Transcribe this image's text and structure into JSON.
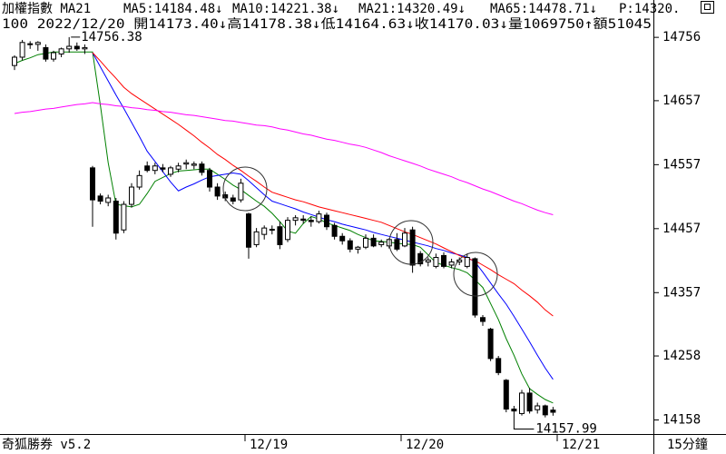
{
  "chart_data": {
    "type": "candlestick",
    "title": "加權指數 MA21",
    "info": "100 2022/12/20 開14173.40↓高14178.38↓低14164.63↓收14170.03↓量1069750↑額51045",
    "extra": {
      "text": "P:14320.",
      "color": "#008000"
    },
    "app_name": "奇狐勝券  v5.2",
    "period": "15分鐘",
    "up_color": "#ffffff",
    "down_color": "#000000",
    "categories": [
      null,
      null,
      null,
      null,
      null,
      null,
      null,
      null,
      null,
      null,
      null,
      null,
      null,
      null,
      null,
      null,
      null,
      null,
      null,
      null,
      null,
      null,
      null,
      null,
      null,
      null,
      null,
      null,
      null,
      null,
      "12/19",
      null,
      null,
      null,
      null,
      null,
      null,
      null,
      null,
      null,
      null,
      null,
      null,
      null,
      null,
      null,
      null,
      null,
      null,
      null,
      "12/20",
      null,
      null,
      null,
      null,
      null,
      null,
      null,
      null,
      null,
      null,
      null,
      null,
      null,
      null,
      null,
      null,
      null,
      null,
      null,
      "12/21"
    ],
    "open": [
      14712,
      14725,
      14746,
      14745,
      14740,
      14722,
      14730,
      14738,
      14742,
      14738,
      14552,
      14508,
      14498,
      14500,
      14455,
      14495,
      14522,
      14555,
      14548,
      14552,
      14542,
      14550,
      14558,
      14556,
      14558,
      14548,
      14522,
      14510,
      14505,
      14502,
      14480,
      14432,
      14448,
      14455,
      14460,
      14440,
      14470,
      14472,
      14470,
      14468,
      14478,
      14462,
      14445,
      14438,
      14425,
      14428,
      14442,
      14432,
      14430,
      14440,
      14430,
      14455,
      14418,
      14405,
      14398,
      14415,
      14400,
      14405,
      14398,
      14410,
      14318,
      14300,
      14254,
      14220,
      14175,
      14168,
      14200,
      14174,
      14180,
      14173.4,
      null
    ],
    "high": [
      14728,
      14752,
      14750,
      14750,
      14745,
      14735,
      14740,
      14756.38,
      14748,
      14745,
      14555,
      14512,
      14510,
      14505,
      14500,
      14528,
      14548,
      14562,
      14560,
      14558,
      14555,
      14560,
      14565,
      14562,
      14562,
      14552,
      14528,
      14515,
      14510,
      14535,
      14482,
      14458,
      14462,
      14462,
      14468,
      14475,
      14478,
      14478,
      14476,
      14485,
      14482,
      14466,
      14450,
      14442,
      14430,
      14448,
      14448,
      14440,
      14442,
      14450,
      14458,
      14460,
      14422,
      14412,
      14418,
      14420,
      14410,
      14412,
      14418,
      14412,
      14322,
      14302,
      14258,
      14222,
      14180,
      14205,
      14208,
      14185,
      14182,
      14178.38,
      null
    ],
    "low": [
      14705,
      14720,
      14738,
      14735,
      14718,
      14718,
      14725,
      14732,
      14735,
      14730,
      14460,
      14495,
      14492,
      14440,
      14450,
      14490,
      14518,
      14545,
      14542,
      14545,
      14538,
      14545,
      14550,
      14550,
      14540,
      14515,
      14502,
      14500,
      14495,
      14498,
      14410,
      14428,
      14440,
      14448,
      14425,
      14436,
      14462,
      14465,
      14460,
      14465,
      14455,
      14440,
      14432,
      14420,
      14418,
      14425,
      14428,
      14428,
      14426,
      14422,
      14428,
      14388,
      14398,
      14398,
      14395,
      14395,
      14395,
      14400,
      14395,
      14318,
      14305,
      14250,
      14228,
      14170,
      14157.99,
      14165,
      14168,
      14168,
      14162,
      14164.63,
      null
    ],
    "close": [
      14725,
      14748,
      14745,
      14748,
      14722,
      14732,
      14738,
      14742,
      14738,
      14740,
      14502,
      14500,
      14505,
      14450,
      14495,
      14522,
      14540,
      14548,
      14555,
      14550,
      14552,
      14555,
      14560,
      14558,
      14545,
      14522,
      14508,
      14505,
      14500,
      14528,
      14428,
      14452,
      14458,
      14456,
      14432,
      14470,
      14474,
      14470,
      14468,
      14480,
      14460,
      14445,
      14438,
      14425,
      14428,
      14442,
      14430,
      14436,
      14440,
      14425,
      14450,
      14400,
      14402,
      14408,
      14412,
      14398,
      14405,
      14408,
      14412,
      14322,
      14312,
      14254,
      14232,
      14175,
      14172,
      14200,
      14172,
      14180,
      14166,
      14170.03,
      null
    ],
    "series": [
      {
        "name": "MA5:14184.48↓",
        "color": "#008000",
        "values": [
          14715,
          14720,
          14724,
          14729,
          14731,
          14733,
          14733,
          14733,
          14733,
          14733,
          14733,
          14650,
          14560,
          14495,
          14493,
          14491,
          14495,
          14512,
          14531,
          14537,
          14543,
          14547,
          14548,
          14549,
          14550,
          14550,
          14542,
          14534,
          14525,
          14518,
          14509,
          14500,
          14492,
          14481,
          14468,
          14453,
          14450,
          14465,
          14476,
          14472,
          14466,
          14462,
          14458,
          14454,
          14448,
          14443,
          14438,
          14437,
          14436,
          14434,
          14433,
          14432,
          14428,
          14416,
          14404,
          14400,
          14396,
          14393,
          14388,
          14377,
          14365,
          14340,
          14315,
          14285,
          14259,
          14230,
          14207,
          14198,
          14190,
          14184.48,
          null
        ]
      },
      {
        "name": "MA10:14221.38↓",
        "color": "#0000ff",
        "values": [
          null,
          null,
          null,
          null,
          null,
          null,
          null,
          null,
          null,
          null,
          14732,
          14710,
          14688,
          14666,
          14645,
          14623,
          14601,
          14578,
          14562,
          14546,
          14530,
          14516,
          14522,
          14527,
          14533,
          14538,
          14540,
          14542,
          14544,
          14542,
          14532,
          14521,
          14510,
          14500,
          14496,
          14492,
          14488,
          14483,
          14479,
          14475,
          14471,
          14468,
          14464,
          14461,
          14458,
          14455,
          14451,
          14448,
          14445,
          14442,
          14439,
          14436,
          14433,
          14430,
          14426,
          14423,
          14419,
          14416,
          14412,
          14405,
          14389,
          14372,
          14355,
          14339,
          14320,
          14300,
          14280,
          14259,
          14239,
          14221.38,
          null
        ]
      },
      {
        "name": "MA21:14320.49↓",
        "color": "#ff0000",
        "values": [
          null,
          null,
          null,
          null,
          null,
          null,
          null,
          null,
          null,
          null,
          14732,
          14719,
          14705,
          14692,
          14678,
          14668,
          14660,
          14652,
          14644,
          14636,
          14628,
          14620,
          14611,
          14602,
          14592,
          14583,
          14573,
          14565,
          14556,
          14548,
          14539,
          14531,
          14522,
          14514,
          14510,
          14506,
          14502,
          14499,
          14495,
          14491,
          14488,
          14485,
          14482,
          14479,
          14476,
          14473,
          14470,
          14467,
          14462,
          14457,
          14452,
          14448,
          14443,
          14438,
          14433,
          14427,
          14421,
          14415,
          14410,
          14407,
          14400,
          14393,
          14385,
          14378,
          14371,
          14361,
          14352,
          14342,
          14330,
          14320.49,
          null
        ]
      },
      {
        "name": "MA65:14478.71↓",
        "color": "#ff00ff",
        "values": [
          14637,
          14639,
          14640,
          14642,
          14644,
          14645,
          14647,
          14649,
          14651,
          14652,
          14654,
          14652,
          14651,
          14649,
          14648,
          14646,
          14645,
          14643,
          14642,
          14640,
          14639,
          14637,
          14635,
          14634,
          14632,
          14630,
          14628,
          14626,
          14625,
          14623,
          14621,
          14619,
          14618,
          14616,
          14613,
          14611,
          14608,
          14605,
          14603,
          14600,
          14597,
          14595,
          14592,
          14589,
          14587,
          14584,
          14580,
          14576,
          14571,
          14567,
          14563,
          14559,
          14555,
          14550,
          14546,
          14542,
          14538,
          14533,
          14529,
          14524,
          14519,
          14515,
          14510,
          14505,
          14500,
          14496,
          14491,
          14486,
          14482,
          14478.71,
          null
        ]
      }
    ],
    "ylim": [
      14136,
      14786
    ],
    "yticks": [
      14158,
      14258,
      14357,
      14457,
      14557,
      14657,
      14756
    ],
    "grid": false
  }
}
